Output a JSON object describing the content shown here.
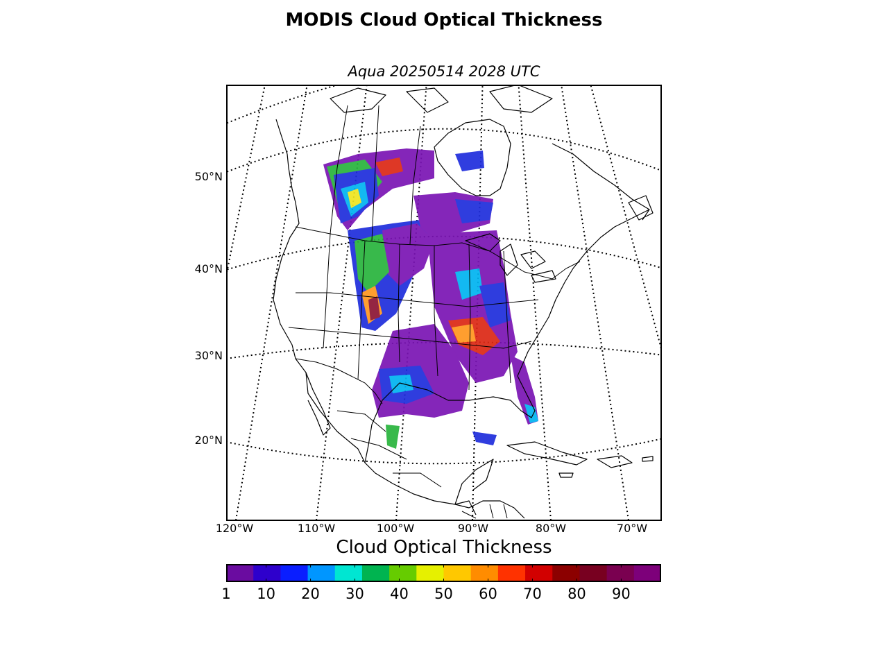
{
  "title": "MODIS Cloud Optical Thickness",
  "subtitle": "Aqua 20250514 2028 UTC",
  "map": {
    "lat_labels": [
      "50°N",
      "40°N",
      "30°N",
      "20°N"
    ],
    "lon_labels": [
      "120°W",
      "110°W",
      "100°W",
      "90°W",
      "80°W",
      "70°W"
    ]
  },
  "colorbar": {
    "title": "Cloud Optical Thickness",
    "range": [
      1,
      99
    ],
    "tick_labels": [
      "1",
      "10",
      "20",
      "30",
      "40",
      "50",
      "60",
      "70",
      "80",
      "90"
    ],
    "tick_values": [
      1,
      10,
      20,
      30,
      40,
      50,
      60,
      70,
      80,
      90
    ],
    "colors": [
      "#6a0ca0",
      "#2e00cc",
      "#0a1eff",
      "#0096ff",
      "#00e6d2",
      "#00b450",
      "#66cc00",
      "#e6f000",
      "#ffc800",
      "#ff8c00",
      "#ff3200",
      "#d20000",
      "#8c0000",
      "#780020",
      "#7a0050",
      "#7d007a"
    ]
  },
  "palette": {
    "violet": "#7a14b4",
    "blue": "#1e2ddc",
    "cyan": "#00b4f0",
    "green": "#28b43c",
    "yellow": "#f0e61e",
    "orange": "#ff961e",
    "red": "#dc2814",
    "maroon": "#8c1432"
  }
}
